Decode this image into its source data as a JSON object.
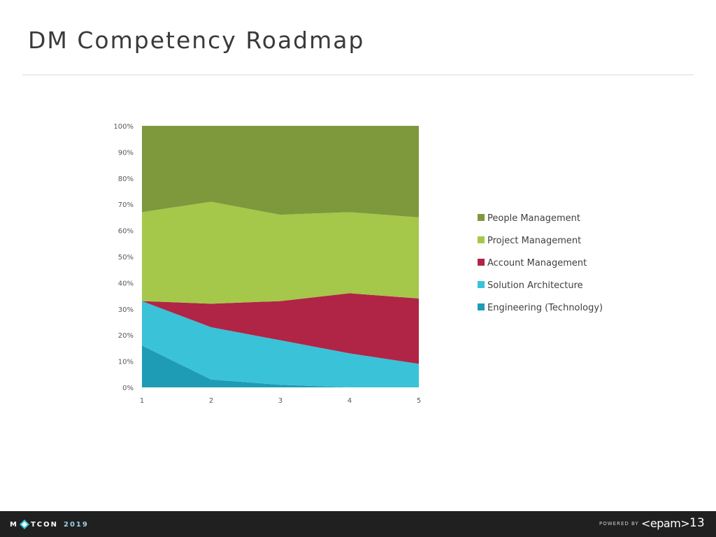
{
  "slide": {
    "title": "DM Competency Roadmap",
    "page_number": "13"
  },
  "footer": {
    "logo_text_left": "M",
    "logo_text_right": "TCON",
    "logo_year": "2019",
    "powered_by": "POWERED BY",
    "brand": "<epam>"
  },
  "colors": {
    "people_management": "#7e983c",
    "project_management": "#a5c74a",
    "account_management": "#b02545",
    "solution_architecture": "#3ac2d8",
    "engineering": "#1e9cb6",
    "footer_bg": "#202020"
  },
  "chart_data": {
    "type": "area",
    "stacked": "percent",
    "x": [
      1,
      2,
      3,
      4,
      5
    ],
    "ylim": [
      0,
      100
    ],
    "yticks": [
      "0%",
      "10%",
      "20%",
      "30%",
      "40%",
      "50%",
      "60%",
      "70%",
      "80%",
      "90%",
      "100%"
    ],
    "xticks": [
      "1",
      "2",
      "3",
      "4",
      "5"
    ],
    "legend_position": "right",
    "series": [
      {
        "name": "Engineering (Technology)",
        "color": "#1e9cb6",
        "values": [
          16,
          3,
          1,
          0,
          0
        ]
      },
      {
        "name": "Solution Architecture",
        "color": "#3ac2d8",
        "values": [
          17,
          20,
          17,
          13,
          9
        ]
      },
      {
        "name": "Account Management",
        "color": "#b02545",
        "values": [
          0,
          9,
          15,
          23,
          25
        ]
      },
      {
        "name": "Project Management",
        "color": "#a5c74a",
        "values": [
          34,
          39,
          33,
          31,
          31
        ]
      },
      {
        "name": "People Management",
        "color": "#7e983c",
        "values": [
          33,
          29,
          34,
          33,
          35
        ]
      }
    ],
    "legend_order": [
      "People Management",
      "Project Management",
      "Account Management",
      "Solution Architecture",
      "Engineering (Technology)"
    ]
  }
}
